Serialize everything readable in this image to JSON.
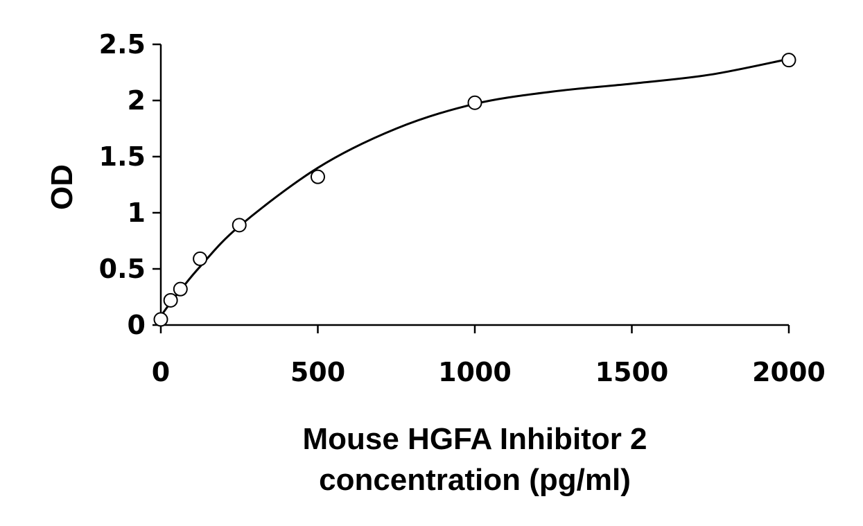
{
  "chart_data": {
    "type": "scatter",
    "xlabel_lines": [
      "Mouse HGFA Inhibitor 2",
      "concentration (pg/ml)"
    ],
    "ylabel": "OD",
    "xlim": [
      0,
      2000
    ],
    "ylim": [
      0,
      2.5
    ],
    "x_ticks": [
      0,
      500,
      1000,
      1500,
      2000
    ],
    "y_ticks": [
      0,
      0.5,
      1,
      1.5,
      2,
      2.5
    ],
    "x_tick_labels": [
      "0",
      "500",
      "1000",
      "1500",
      "2000"
    ],
    "y_tick_labels": [
      "0",
      "0.5",
      "1",
      "1.5",
      "2",
      "2.5"
    ],
    "grid": false,
    "legend": "none",
    "marker": "open-circle",
    "points": [
      {
        "x": 0,
        "y": 0.05
      },
      {
        "x": 31.25,
        "y": 0.22
      },
      {
        "x": 62.5,
        "y": 0.32
      },
      {
        "x": 125,
        "y": 0.59
      },
      {
        "x": 250,
        "y": 0.89
      },
      {
        "x": 500,
        "y": 1.32
      },
      {
        "x": 1000,
        "y": 1.98
      },
      {
        "x": 2000,
        "y": 2.36
      }
    ],
    "fit_curve": {
      "type": "smooth",
      "points": [
        {
          "x": 0,
          "y": 0.08
        },
        {
          "x": 31.25,
          "y": 0.2
        },
        {
          "x": 62.5,
          "y": 0.31
        },
        {
          "x": 125,
          "y": 0.52
        },
        {
          "x": 250,
          "y": 0.88
        },
        {
          "x": 500,
          "y": 1.4
        },
        {
          "x": 750,
          "y": 1.75
        },
        {
          "x": 1000,
          "y": 1.97
        },
        {
          "x": 1250,
          "y": 2.08
        },
        {
          "x": 1500,
          "y": 2.15
        },
        {
          "x": 1750,
          "y": 2.23
        },
        {
          "x": 2000,
          "y": 2.37
        }
      ]
    },
    "colors": {
      "line": "#000000",
      "marker_fill": "#ffffff",
      "background": "#ffffff"
    }
  }
}
